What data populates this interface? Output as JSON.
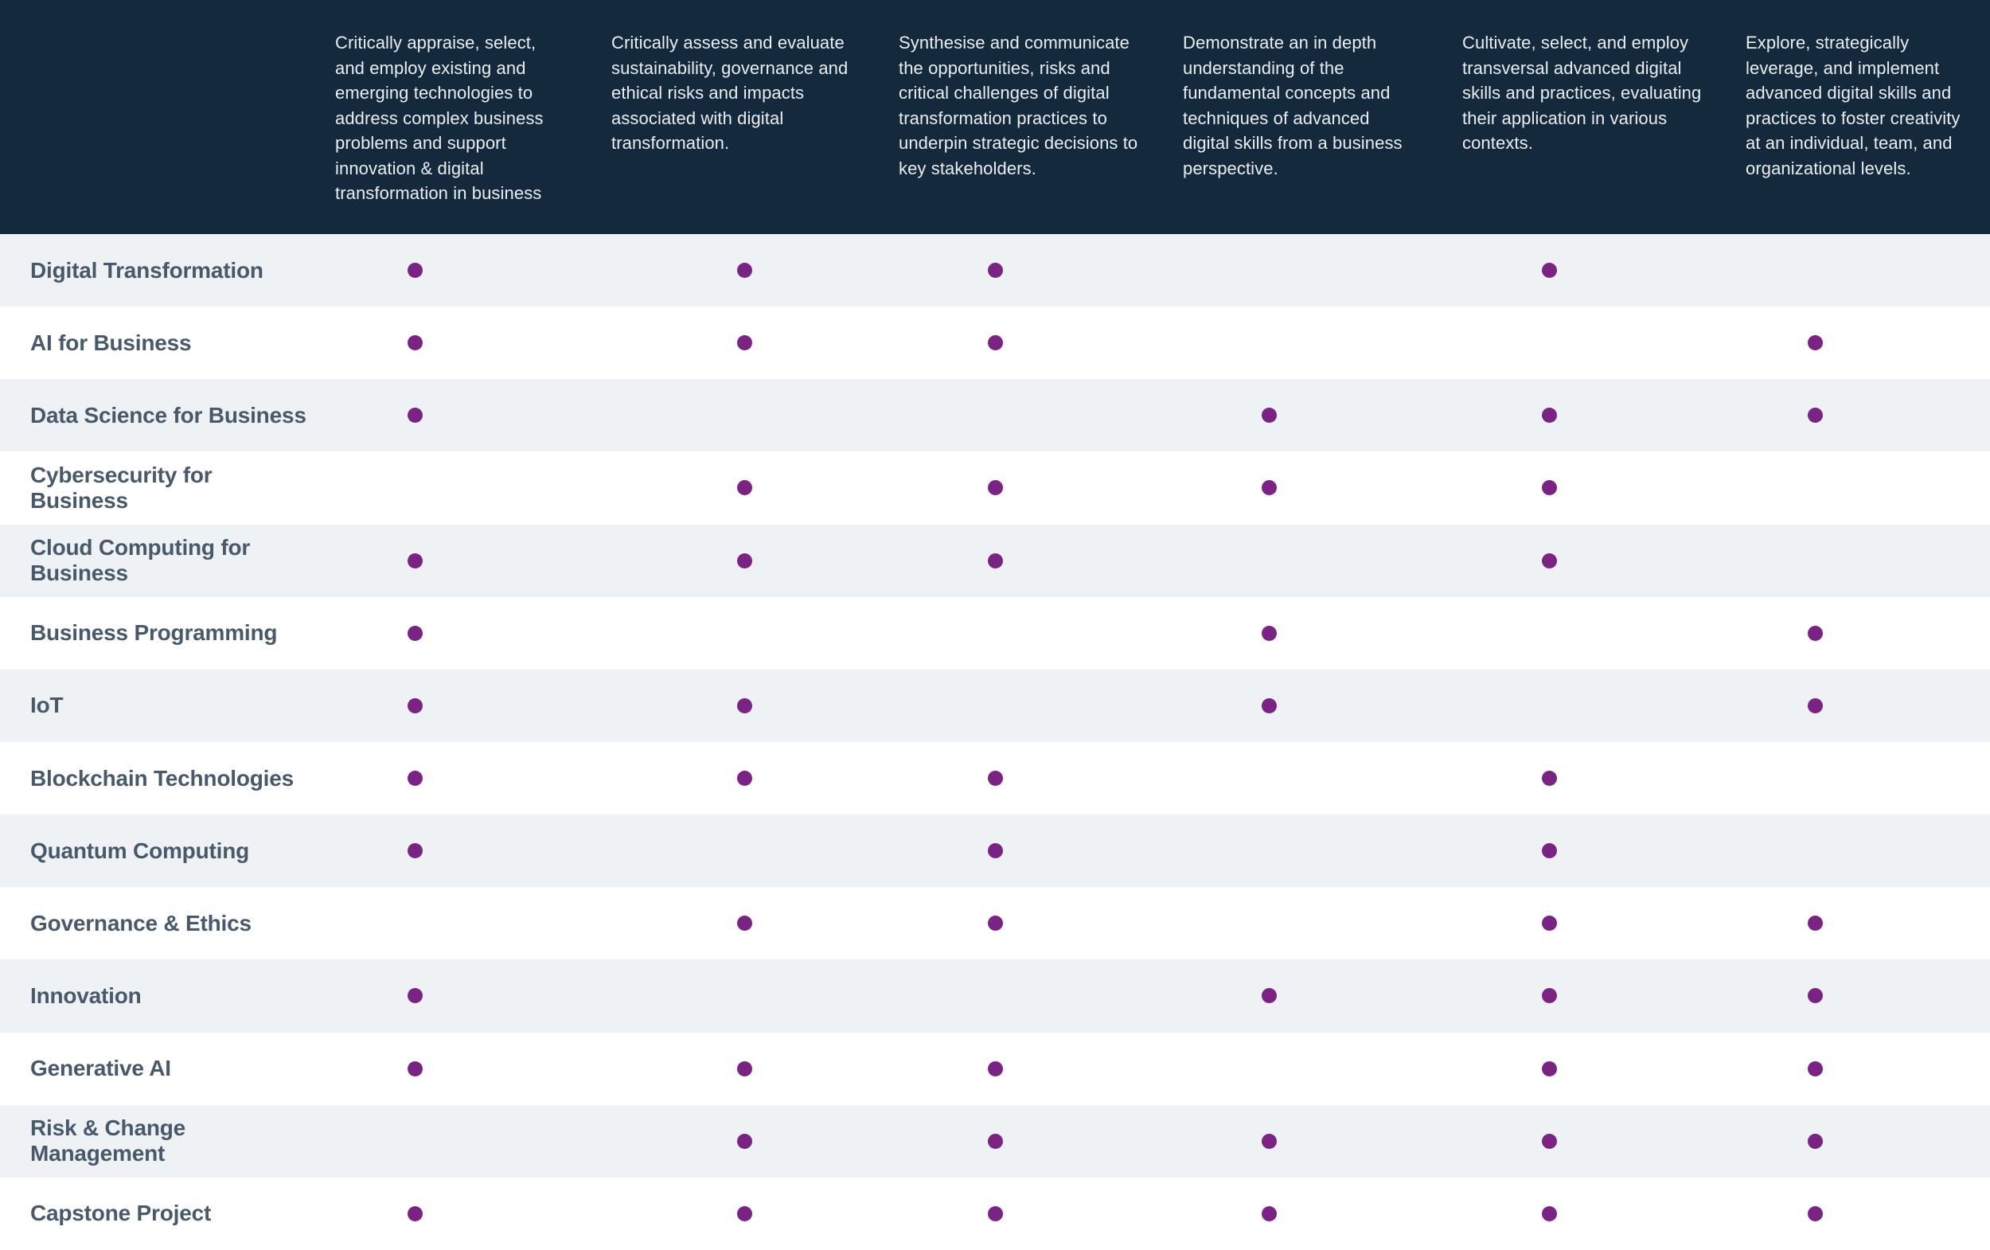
{
  "colors": {
    "header_bg": "#15293D",
    "header_text": "#E9EEF2",
    "row_bg": "#FFFFFF",
    "row_alt_bg": "#EFF2F5",
    "label_text": "#47596A",
    "dot": "#7A2384"
  },
  "chart_data": {
    "type": "table",
    "title": "",
    "columns": [
      "Critically appraise, select, and employ existing and emerging technologies to address complex business problems and support innovation & digital transformation in business",
      "Critically assess and evaluate sustainability, governance and ethical risks and impacts associated with digital transformation.",
      "Synthesise and communicate the opportunities, risks and critical challenges of digital transformation practices to underpin strategic decisions to key stakeholders.",
      "Demonstrate an in depth understanding of the fundamental concepts and techniques of advanced digital skills from a business perspective.",
      "Cultivate, select, and employ transversal advanced digital skills and practices, evaluating their application in various contexts.",
      "Explore, strategically leverage, and implement advanced digital skills and practices to foster creativity at an individual, team, and organizational levels."
    ],
    "rows": [
      {
        "label": "Digital Transformation",
        "marks": [
          1,
          1,
          1,
          0,
          1,
          0
        ]
      },
      {
        "label": "AI for Business",
        "marks": [
          1,
          1,
          1,
          0,
          0,
          1
        ]
      },
      {
        "label": "Data Science for Business",
        "marks": [
          1,
          0,
          0,
          1,
          1,
          1
        ]
      },
      {
        "label": "Cybersecurity for Business",
        "marks": [
          0,
          1,
          1,
          1,
          1,
          0
        ]
      },
      {
        "label": "Cloud Computing for Business",
        "marks": [
          1,
          1,
          1,
          0,
          1,
          0
        ]
      },
      {
        "label": "Business Programming",
        "marks": [
          1,
          0,
          0,
          1,
          0,
          1
        ]
      },
      {
        "label": "IoT",
        "marks": [
          1,
          1,
          0,
          1,
          0,
          1
        ]
      },
      {
        "label": "Blockchain Technologies",
        "marks": [
          1,
          1,
          1,
          0,
          1,
          0
        ]
      },
      {
        "label": "Quantum Computing",
        "marks": [
          1,
          0,
          1,
          0,
          1,
          0
        ]
      },
      {
        "label": "Governance & Ethics",
        "marks": [
          0,
          1,
          1,
          0,
          1,
          1
        ]
      },
      {
        "label": "Innovation",
        "marks": [
          1,
          0,
          0,
          1,
          1,
          1
        ]
      },
      {
        "label": "Generative AI",
        "marks": [
          1,
          1,
          1,
          0,
          1,
          1
        ]
      },
      {
        "label": "Risk & Change Management",
        "marks": [
          0,
          1,
          1,
          1,
          1,
          1
        ]
      },
      {
        "label": "Capstone Project",
        "marks": [
          1,
          1,
          1,
          1,
          1,
          1
        ]
      }
    ]
  }
}
